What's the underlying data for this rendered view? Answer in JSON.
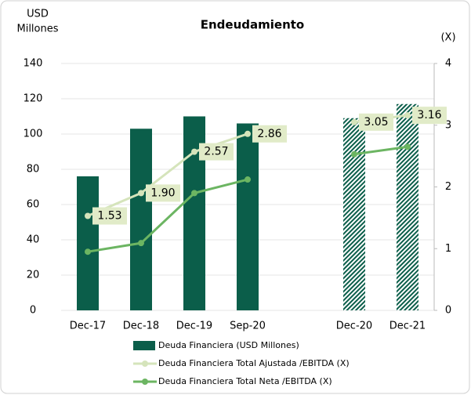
{
  "chart_data": {
    "type": "bar_line",
    "title": "Endeudamiento",
    "ylabel": [
      "USD",
      "Millones"
    ],
    "y2label": "(X)",
    "categories": [
      "Dec-17",
      "Dec-18",
      "Dec-19",
      "Sep-20",
      null,
      "Dec-20",
      "Dec-21"
    ],
    "ylim": [
      0,
      140
    ],
    "yticks": [
      0,
      20,
      40,
      60,
      80,
      100,
      120,
      140
    ],
    "y2lim": [
      0,
      4
    ],
    "y2ticks": [
      0,
      1,
      2,
      3,
      4
    ],
    "series": [
      {
        "name": "Deuda Financiera (USD Millones)",
        "type": "bar",
        "color": "#0b5e4a",
        "hatched": [
          false,
          false,
          false,
          false,
          false,
          true,
          true
        ],
        "values": [
          76,
          103,
          110,
          106,
          null,
          109,
          117
        ]
      },
      {
        "name": "Deuda Financiera Total Ajustada /EBITDA (X)",
        "type": "line",
        "axis": "y2",
        "color": "#d5e4bb",
        "values": [
          1.53,
          1.9,
          2.57,
          2.86,
          null,
          3.05,
          3.16
        ],
        "value_labels": [
          "1.53",
          "1.90",
          "2.57",
          "2.86",
          null,
          "3.05",
          "3.16"
        ]
      },
      {
        "name": "Deuda Financiera Total Neta /EBITDA (X)",
        "type": "line",
        "axis": "y2",
        "color": "#6cb562",
        "values": [
          0.95,
          1.09,
          1.9,
          2.12,
          null,
          2.53,
          2.65
        ]
      }
    ]
  }
}
